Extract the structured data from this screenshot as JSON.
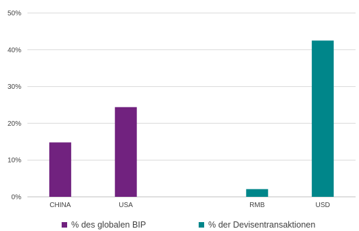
{
  "chart_data": {
    "type": "bar",
    "categories": [
      "CHINA",
      "USA",
      "",
      "RMB",
      "USD"
    ],
    "series": [
      {
        "name": "% des globalen BIP",
        "color": "#71227F",
        "values": [
          14.8,
          24.4,
          null,
          null,
          null
        ]
      },
      {
        "name": "% der Devisentransaktionen",
        "color": "#00868A",
        "values": [
          null,
          null,
          null,
          2.1,
          42.5
        ]
      }
    ],
    "ylim": [
      0,
      50
    ],
    "yticks": [
      "0%",
      "10%",
      "20%",
      "30%",
      "40%",
      "50%"
    ],
    "grid": true,
    "legend_position": "bottom"
  }
}
